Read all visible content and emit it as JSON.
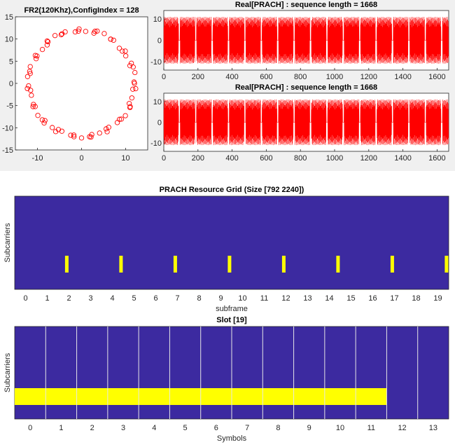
{
  "chart_data": [
    {
      "type": "scatter",
      "title": "FR2(120Khz),ConfigIndex = 128",
      "xlim": [
        -15,
        15
      ],
      "ylim": [
        -15,
        15
      ],
      "xticks": [
        -10,
        0,
        10
      ],
      "yticks": [
        15,
        10,
        5,
        0,
        -5,
        -10,
        -15
      ],
      "marker": "circle",
      "color": "#ff0000",
      "radius": 12,
      "points": 72
    },
    {
      "type": "line",
      "title": "Real[PRACH] : sequence length = 1668",
      "xlim": [
        0,
        1668
      ],
      "ylim": [
        -14,
        14
      ],
      "xticks": [
        0,
        200,
        400,
        600,
        800,
        1000,
        1200,
        1400,
        1600
      ],
      "yticks": [
        10,
        0,
        -10
      ],
      "amplitude": 11,
      "color": "#ff0000"
    },
    {
      "type": "line",
      "title": "Real[PRACH] : sequence length = 1668",
      "xlim": [
        0,
        1668
      ],
      "ylim": [
        -14,
        14
      ],
      "xticks": [
        0,
        200,
        400,
        600,
        800,
        1000,
        1200,
        1400,
        1600
      ],
      "yticks": [
        10,
        0,
        -10
      ],
      "amplitude": 11,
      "color": "#ff0000"
    },
    {
      "type": "heatmap",
      "title": "PRACH Resource Grid (Size [792 2240])",
      "xlabel": "subframe",
      "ylabel": "Subcarriers",
      "xticks": [
        0,
        1,
        2,
        3,
        4,
        5,
        6,
        7,
        8,
        9,
        10,
        11,
        12,
        13,
        14,
        15,
        16,
        17,
        18,
        19
      ],
      "xlim": [
        -0.5,
        19.5
      ],
      "background_color": "#3c2aa0",
      "active_color": "#ffff00",
      "active_slots_subframe": [
        1.9,
        4.4,
        6.9,
        9.4,
        11.9,
        14.4,
        16.9,
        19.4
      ]
    },
    {
      "type": "heatmap",
      "title": "Slot [19]",
      "xlabel": "Symbols",
      "ylabel": "Subcarriers",
      "xticks": [
        0,
        1,
        2,
        3,
        4,
        5,
        6,
        7,
        8,
        9,
        10,
        11,
        12,
        13
      ],
      "xlim": [
        -0.5,
        13.5
      ],
      "background_color": "#3c2aa0",
      "active_color": "#ffff00",
      "active_symbol_range": [
        0,
        11
      ],
      "symbol_dividers": [
        0.5,
        1.5,
        2.5,
        3.5,
        4.5,
        5.5,
        6.5,
        7.5,
        8.5,
        9.5,
        10.5,
        11.5,
        12.5
      ]
    }
  ]
}
